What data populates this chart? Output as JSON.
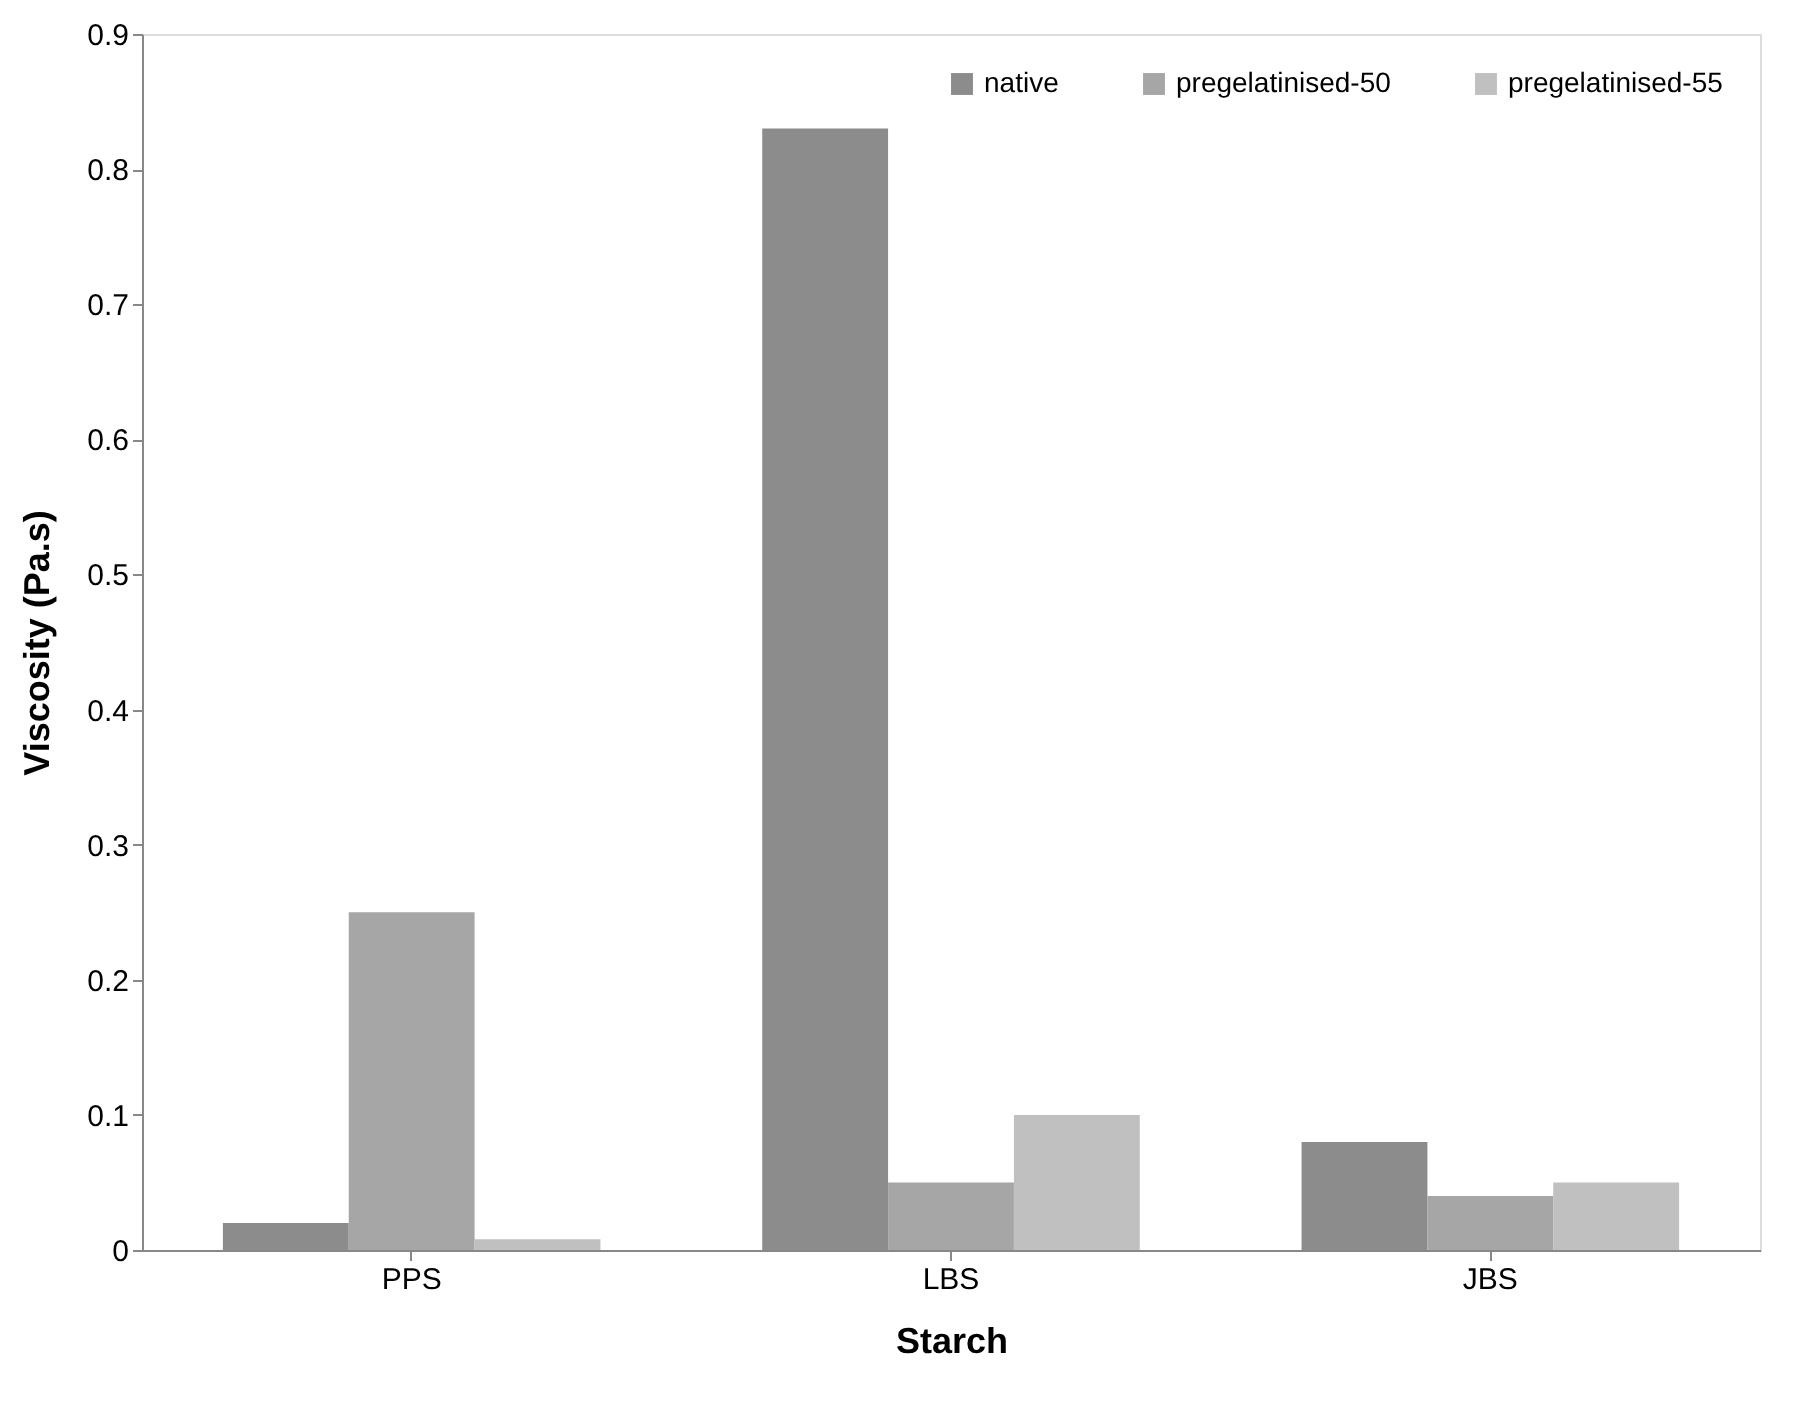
{
  "chart_data": {
    "type": "bar",
    "xlabel": "Starch",
    "ylabel": "Viscosity (Pa.s)",
    "categories": [
      "PPS",
      "LBS",
      "JBS"
    ],
    "series": [
      {
        "name": "native",
        "color": "#8c8c8c",
        "values": [
          0.02,
          0.83,
          0.08
        ]
      },
      {
        "name": "pregelatinised-50",
        "color": "#a6a6a6",
        "values": [
          0.25,
          0.05,
          0.04
        ]
      },
      {
        "name": "pregelatinised-55",
        "color": "#c0c0c0",
        "values": [
          0.008,
          0.1,
          0.05
        ]
      }
    ],
    "ylim": [
      0,
      0.9
    ],
    "yticks": [
      0,
      0.1,
      0.2,
      0.3,
      0.4,
      0.5,
      0.6,
      0.7,
      0.8,
      0.9
    ],
    "grid": false,
    "legend": "top right"
  }
}
